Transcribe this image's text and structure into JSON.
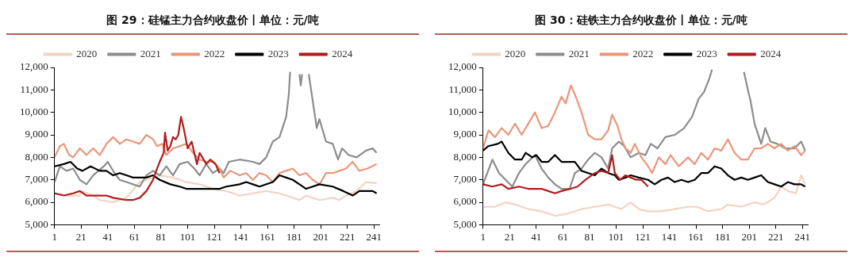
{
  "chart_data": [
    {
      "type": "line",
      "title": "图 29：硅锰主力合约收盘价丨单位：元/吨",
      "xlim": [
        1,
        245
      ],
      "xticks": [
        1,
        21,
        41,
        61,
        81,
        101,
        121,
        141,
        161,
        181,
        201,
        221,
        241
      ],
      "ylim": [
        5000,
        12000
      ],
      "yticks": [
        {
          "value": 5000,
          "label": "5,000"
        },
        {
          "value": 6000,
          "label": "6,000"
        },
        {
          "value": 7000,
          "label": "7,000"
        },
        {
          "value": 8000,
          "label": "8,000"
        },
        {
          "value": 9000,
          "label": "9,000"
        },
        {
          "value": 10000,
          "label": "10,000"
        },
        {
          "value": 11000,
          "label": "11,000"
        },
        {
          "value": 12000,
          "label": "12,000"
        }
      ],
      "grid": false,
      "legend": "top",
      "marker": "none",
      "line_style": "solid",
      "series": [
        {
          "name": "2020",
          "color": "#f2d3c2",
          "x": [
            1,
            10,
            20,
            21,
            30,
            35,
            45,
            55,
            65,
            70,
            80,
            90,
            100,
            110,
            120,
            130,
            140,
            150,
            160,
            170,
            180,
            185,
            190,
            200,
            210,
            215,
            220,
            228,
            235,
            243
          ],
          "values": [
            6400,
            6300,
            6300,
            6500,
            6300,
            6100,
            6000,
            6200,
            6900,
            7000,
            7200,
            7100,
            6900,
            6800,
            6600,
            6500,
            6300,
            6400,
            6500,
            6400,
            6200,
            6100,
            6300,
            6100,
            6200,
            6100,
            6300,
            6500,
            6900,
            6850
          ]
        },
        {
          "name": "2021",
          "color": "#8c8c8c",
          "x": [
            1,
            5,
            10,
            15,
            20,
            25,
            30,
            38,
            41,
            46,
            50,
            55,
            60,
            65,
            70,
            75,
            80,
            85,
            90,
            95,
            101,
            106,
            110,
            115,
            120,
            125,
            128,
            132,
            140,
            150,
            155,
            160,
            165,
            170,
            175,
            177,
            178,
            180,
            184,
            185,
            186,
            187,
            188,
            191,
            192,
            195,
            198,
            200,
            205,
            210,
            214,
            217,
            222,
            228,
            235,
            240,
            243
          ],
          "values": [
            6900,
            7600,
            7400,
            7500,
            7000,
            6800,
            7200,
            7600,
            7800,
            7300,
            7000,
            6900,
            6800,
            6700,
            7200,
            7400,
            7200,
            7600,
            7200,
            7700,
            7800,
            7500,
            7200,
            7700,
            7300,
            7500,
            7300,
            7800,
            7900,
            7800,
            7700,
            8000,
            8700,
            8900,
            9800,
            10800,
            11800,
            null,
            null,
            11700,
            11200,
            11700,
            null,
            null,
            11700,
            10500,
            9300,
            9700,
            8700,
            8600,
            7900,
            8400,
            8100,
            8000,
            8300,
            8400,
            8200
          ]
        },
        {
          "name": "2022",
          "color": "#e8977a",
          "x": [
            1,
            5,
            8,
            12,
            15,
            20,
            25,
            30,
            35,
            40,
            45,
            50,
            55,
            60,
            65,
            70,
            75,
            78,
            82,
            85,
            90,
            95,
            100,
            105,
            110,
            115,
            120,
            125,
            128,
            133,
            140,
            145,
            150,
            155,
            160,
            165,
            170,
            175,
            180,
            185,
            190,
            195,
            200,
            205,
            210,
            215,
            220,
            225,
            230,
            236,
            243
          ],
          "values": [
            8000,
            8500,
            8600,
            8100,
            8000,
            8400,
            8100,
            8400,
            8100,
            8600,
            8900,
            8600,
            8800,
            8700,
            8600,
            9000,
            8800,
            8500,
            8600,
            8100,
            8400,
            8500,
            8600,
            8200,
            7900,
            7800,
            7800,
            7500,
            7100,
            7400,
            7200,
            7300,
            7000,
            7300,
            7200,
            6900,
            7300,
            7400,
            7500,
            7200,
            7300,
            7000,
            6800,
            7300,
            7300,
            7400,
            7500,
            7800,
            7400,
            7500,
            7700
          ]
        },
        {
          "name": "2023",
          "color": "#000000",
          "x": [
            1,
            8,
            13,
            18,
            22,
            28,
            35,
            40,
            45,
            50,
            55,
            60,
            65,
            70,
            75,
            80,
            88,
            95,
            100,
            110,
            120,
            125,
            130,
            140,
            145,
            150,
            155,
            165,
            170,
            175,
            180,
            185,
            190,
            195,
            200,
            210,
            218,
            225,
            230,
            235,
            240,
            243
          ],
          "values": [
            7600,
            7700,
            7800,
            7500,
            7400,
            7600,
            7400,
            7400,
            7200,
            7300,
            7200,
            7100,
            7100,
            7100,
            7200,
            7000,
            6800,
            6700,
            6600,
            6600,
            6600,
            6600,
            6700,
            6800,
            6900,
            6800,
            6700,
            6900,
            7200,
            7100,
            7000,
            6800,
            6600,
            6700,
            6800,
            6700,
            6500,
            6300,
            6500,
            6500,
            6500,
            6400
          ]
        },
        {
          "name": "2024",
          "color": "#b01c1c",
          "x": [
            1,
            8,
            15,
            20,
            25,
            30,
            40,
            45,
            55,
            60,
            65,
            70,
            75,
            78,
            80,
            83,
            84,
            86,
            88,
            90,
            92,
            94,
            96,
            98,
            101,
            104,
            106,
            108,
            110,
            112,
            115,
            118,
            122,
            125
          ],
          "values": [
            6400,
            6300,
            6400,
            6500,
            6300,
            6300,
            6300,
            6200,
            6100,
            6100,
            6200,
            6500,
            7000,
            7500,
            7800,
            8200,
            9100,
            8300,
            8500,
            8900,
            8800,
            9000,
            9800,
            9300,
            8400,
            8700,
            8200,
            7700,
            8200,
            8000,
            7700,
            7900,
            7700,
            7300
          ]
        }
      ]
    },
    {
      "type": "line",
      "title": "图 30：硅铁主力合约收盘价丨单位：元/吨",
      "xlim": [
        1,
        245
      ],
      "xticks": [
        1,
        21,
        41,
        61,
        81,
        101,
        121,
        141,
        161,
        181,
        201,
        221,
        241
      ],
      "ylim": [
        5000,
        12000
      ],
      "yticks": [
        {
          "value": 5000,
          "label": "5,000"
        },
        {
          "value": 6000,
          "label": "6,000"
        },
        {
          "value": 7000,
          "label": "7,000"
        },
        {
          "value": 8000,
          "label": "8,000"
        },
        {
          "value": 9000,
          "label": "9,000"
        },
        {
          "value": 10000,
          "label": "10,000"
        },
        {
          "value": 11000,
          "label": "11,000"
        },
        {
          "value": 12000,
          "label": "12,000"
        }
      ],
      "grid": false,
      "legend": "top",
      "marker": "none",
      "line_style": "solid",
      "series": [
        {
          "name": "2020",
          "color": "#f2d3c2",
          "x": [
            1,
            10,
            18,
            25,
            35,
            45,
            55,
            65,
            75,
            85,
            95,
            100,
            105,
            112,
            118,
            125,
            135,
            145,
            155,
            162,
            170,
            180,
            185,
            195,
            205,
            212,
            220,
            225,
            230,
            236,
            240,
            243
          ],
          "values": [
            5800,
            5800,
            6000,
            5900,
            5700,
            5600,
            5400,
            5500,
            5700,
            5800,
            5900,
            5800,
            5700,
            6000,
            5700,
            5600,
            5600,
            5700,
            5800,
            5800,
            5600,
            5700,
            5900,
            5800,
            6000,
            5900,
            6200,
            6700,
            6500,
            6400,
            7200,
            6800
          ]
        },
        {
          "name": "2021",
          "color": "#8c8c8c",
          "x": [
            1,
            8,
            13,
            18,
            23,
            28,
            33,
            40,
            45,
            50,
            55,
            60,
            66,
            70,
            75,
            80,
            85,
            90,
            95,
            98,
            103,
            107,
            112,
            118,
            123,
            127,
            132,
            138,
            145,
            152,
            158,
            163,
            167,
            171,
            173,
            175,
            195,
            197,
            200,
            202,
            205,
            210,
            213,
            217,
            222,
            228,
            235,
            240,
            243
          ],
          "values": [
            6800,
            7900,
            7300,
            7000,
            6700,
            7300,
            7700,
            8100,
            7500,
            7100,
            6800,
            6600,
            6600,
            7300,
            7500,
            7900,
            8200,
            8000,
            7500,
            8400,
            8700,
            8500,
            8000,
            8200,
            8100,
            8600,
            8400,
            8900,
            9000,
            9300,
            9800,
            10600,
            10900,
            11500,
            11900,
            null,
            null,
            11800,
            11000,
            10500,
            9500,
            8600,
            9300,
            8700,
            8600,
            8400,
            8400,
            8700,
            8300
          ]
        },
        {
          "name": "2022",
          "color": "#e8977a",
          "x": [
            1,
            5,
            10,
            15,
            20,
            25,
            30,
            35,
            40,
            45,
            50,
            55,
            60,
            63,
            67,
            70,
            75,
            80,
            85,
            90,
            95,
            98,
            102,
            105,
            108,
            112,
            115,
            120,
            125,
            128,
            133,
            138,
            142,
            148,
            155,
            160,
            165,
            170,
            175,
            180,
            185,
            190,
            195,
            200,
            205,
            210,
            215,
            220,
            225,
            230,
            235,
            240,
            243
          ],
          "values": [
            8400,
            9200,
            8900,
            9300,
            9000,
            9500,
            9000,
            9500,
            10000,
            9300,
            9400,
            10000,
            10700,
            10400,
            11200,
            10800,
            10000,
            9000,
            8800,
            8800,
            9200,
            9900,
            9400,
            8800,
            8400,
            8200,
            8600,
            8000,
            7600,
            7300,
            8000,
            7700,
            8100,
            7600,
            8000,
            7700,
            8200,
            7900,
            8400,
            8300,
            8800,
            8200,
            7900,
            7900,
            8400,
            8400,
            8600,
            8400,
            8600,
            8300,
            8500,
            8100,
            8300
          ]
        },
        {
          "name": "2023",
          "color": "#000000",
          "x": [
            1,
            5,
            12,
            15,
            20,
            25,
            30,
            33,
            38,
            41,
            45,
            50,
            55,
            60,
            65,
            70,
            75,
            80,
            85,
            90,
            95,
            100,
            103,
            108,
            112,
            118,
            125,
            130,
            135,
            140,
            145,
            150,
            155,
            160,
            165,
            170,
            175,
            180,
            185,
            190,
            195,
            200,
            205,
            210,
            215,
            220,
            225,
            230,
            235,
            240,
            243
          ],
          "values": [
            8300,
            8500,
            8600,
            8700,
            8200,
            7900,
            7900,
            8200,
            8000,
            8100,
            7800,
            7800,
            8100,
            7800,
            7800,
            7800,
            7400,
            7300,
            7200,
            7500,
            7300,
            7200,
            7000,
            7100,
            7200,
            7100,
            7000,
            6800,
            7000,
            7100,
            6900,
            7000,
            6900,
            7000,
            7300,
            7300,
            7600,
            7500,
            7200,
            7000,
            7100,
            7000,
            7100,
            7200,
            6900,
            6800,
            6700,
            6900,
            6800,
            6800,
            6700
          ]
        },
        {
          "name": "2024",
          "color": "#b01c1c",
          "x": [
            1,
            8,
            15,
            20,
            28,
            35,
            45,
            50,
            55,
            60,
            67,
            72,
            78,
            85,
            90,
            95,
            98,
            100,
            104,
            108,
            112,
            116,
            120,
            125
          ],
          "values": [
            6800,
            6700,
            6800,
            6600,
            6700,
            6600,
            6600,
            6500,
            6400,
            6500,
            6600,
            6700,
            7000,
            7300,
            7400,
            7300,
            8100,
            7300,
            7000,
            7200,
            7100,
            7000,
            7000,
            6700
          ]
        }
      ]
    }
  ]
}
